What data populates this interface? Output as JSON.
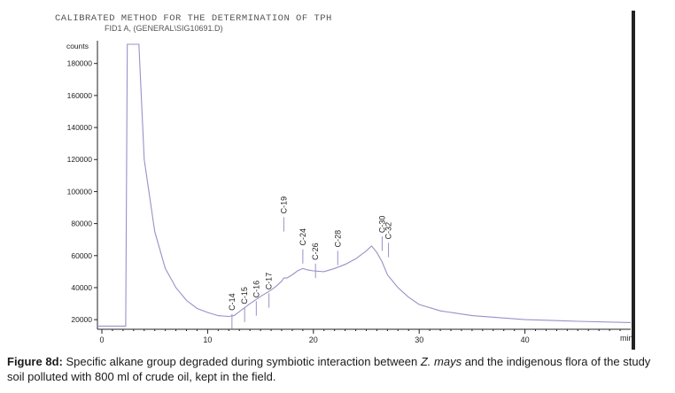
{
  "header": "CALIBRATED METHOD FOR THE DETERMINATION OF TPH",
  "subheader": "FID1 A, (GENERAL\\SIG10691.D)",
  "caption": {
    "label": "Figure 8d:",
    "text_before": "Specific alkane group degraded during symbiotic interaction between",
    "species": "Z. mays",
    "text_after": "and the indigenous flora of the study soil polluted with 800 ml of crude oil, kept in the field."
  },
  "colors": {
    "trace": "#9b8fc8",
    "axis": "#222222",
    "background": "#ffffff"
  },
  "chart_data": {
    "type": "line",
    "ylabel": "counts",
    "xlabel": "min",
    "xlim": [
      0,
      50
    ],
    "ylim": [
      14000,
      192000
    ],
    "x_ticks": [
      0,
      10,
      20,
      30,
      40
    ],
    "y_ticks": [
      20000,
      40000,
      60000,
      80000,
      100000,
      120000,
      140000,
      160000,
      180000
    ],
    "series": [
      {
        "x": [
          -0.5,
          2.2,
          2.25,
          2.4,
          2.5,
          3.5,
          4.0,
          5.0,
          6.0,
          7.0,
          8.0,
          9.0,
          10.0,
          11.0,
          12.0,
          12.5,
          13.0,
          14.0,
          15.0,
          16.0,
          16.5,
          17.0,
          17.2,
          17.5,
          18.0,
          18.5,
          19.0,
          19.5,
          20.0,
          21.0,
          22.0,
          23.0,
          24.0,
          25.0,
          25.5,
          26.0,
          26.5,
          27.0,
          28.0,
          29.0,
          30.0,
          32.0,
          35.0,
          40.0,
          45.0,
          50.0
        ],
        "y": [
          16000,
          16000,
          16000,
          192000,
          192000,
          192000,
          120000,
          75000,
          52000,
          40000,
          32000,
          27000,
          24500,
          22500,
          22000,
          22500,
          25000,
          30000,
          34500,
          38500,
          41000,
          44000,
          46000,
          46000,
          48000,
          50500,
          52000,
          51000,
          50500,
          50000,
          52000,
          54500,
          58000,
          63000,
          66000,
          62000,
          56000,
          48000,
          40000,
          34000,
          29500,
          25500,
          22500,
          20000,
          19000,
          18200
        ]
      }
    ],
    "peaks": [
      {
        "label": "C-14",
        "x": 12.3,
        "y": 23500
      },
      {
        "label": "C-15",
        "x": 13.5,
        "y": 27500
      },
      {
        "label": "C-16",
        "x": 14.6,
        "y": 31500
      },
      {
        "label": "C-17",
        "x": 15.8,
        "y": 36500
      },
      {
        "label": "C-19",
        "x": 17.2,
        "y": 84000
      },
      {
        "label": "C-24",
        "x": 19.0,
        "y": 64000
      },
      {
        "label": "C-26",
        "x": 20.2,
        "y": 55000
      },
      {
        "label": "C-28",
        "x": 22.3,
        "y": 63000
      },
      {
        "label": "C-30",
        "x": 26.5,
        "y": 72000
      },
      {
        "label": "C-32",
        "x": 27.1,
        "y": 68000
      }
    ]
  }
}
